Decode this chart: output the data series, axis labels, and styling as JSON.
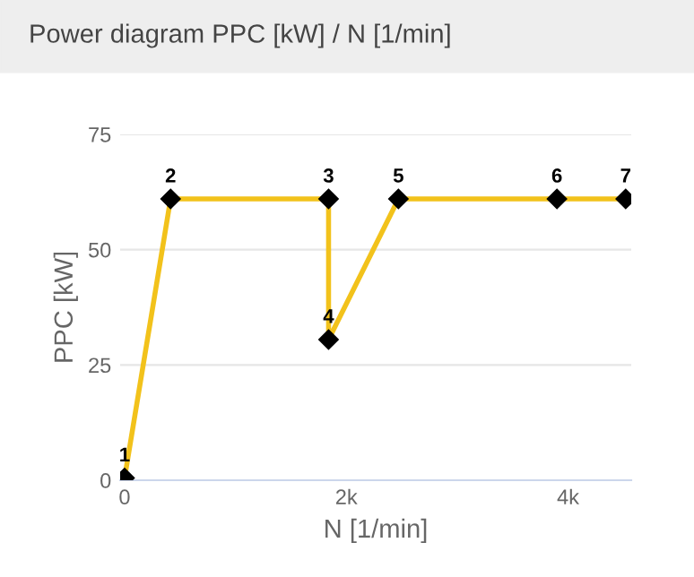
{
  "chart_data": {
    "type": "line",
    "title": "Power diagram PPC [kW] / N [1/min]",
    "xlabel": "N [1/min]",
    "ylabel": "PPC [kW]",
    "x": [
      0,
      415,
      1840,
      1840,
      2470,
      3900,
      4520
    ],
    "series": [
      {
        "color": "#f2c21b",
        "values": [
          0.5,
          61,
          61,
          30.5,
          61,
          61,
          61
        ]
      }
    ],
    "marker": "diamond",
    "line_style": "solid",
    "annotations": [
      {
        "text": "1",
        "x": 0,
        "y": 0.5
      },
      {
        "text": "2",
        "x": 415,
        "y": 61
      },
      {
        "text": "3",
        "x": 1840,
        "y": 61
      },
      {
        "text": "4",
        "x": 1840,
        "y": 30.5
      },
      {
        "text": "5",
        "x": 2470,
        "y": 61
      },
      {
        "text": "6",
        "x": 3900,
        "y": 61
      },
      {
        "text": "7",
        "x": 4520,
        "y": 61
      }
    ],
    "xlim": [
      -40,
      4570
    ],
    "xticks": [
      0,
      {
        "value": 2000,
        "label": "2k"
      },
      {
        "value": 4000,
        "label": "4k"
      }
    ],
    "ylim": [
      0,
      75
    ],
    "yticks": [
      0,
      25,
      50,
      75
    ],
    "grid": "y",
    "legend": false
  }
}
